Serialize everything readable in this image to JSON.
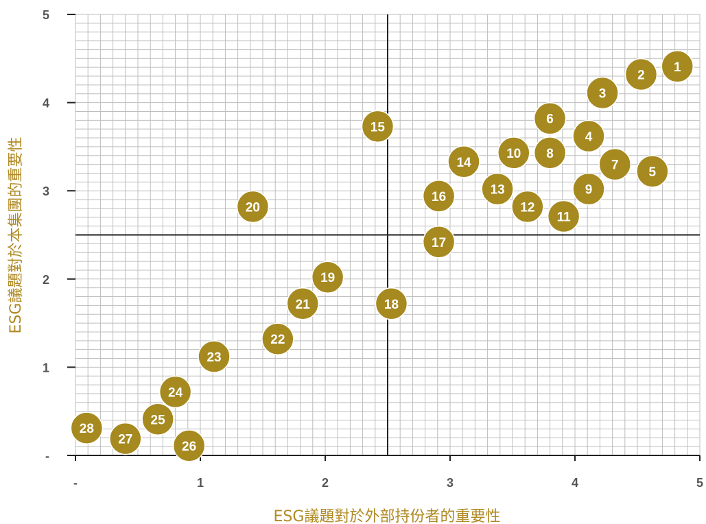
{
  "chart_data": {
    "type": "scatter",
    "xlabel": "ESG議題對於外部持份者的重要性",
    "ylabel": "ESG議題對於本集團的重要性",
    "xlim": [
      0,
      5
    ],
    "ylim": [
      0,
      5
    ],
    "x_ticks": [
      "-",
      "1",
      "2",
      "3",
      "4",
      "5"
    ],
    "y_ticks": [
      "-",
      "1",
      "2",
      "3",
      "4",
      "5"
    ],
    "grid": true,
    "reference_lines": {
      "x": 2.5,
      "y": 2.5
    },
    "colors": {
      "bubble": "#a6891f",
      "bubble_border": "#ffffff",
      "axis_title": "#b08a23",
      "tick": "#555555",
      "grid": "#bdbdbd",
      "axis": "#222222"
    },
    "points": [
      {
        "label": "1",
        "x": 4.82,
        "y": 4.41
      },
      {
        "label": "2",
        "x": 4.53,
        "y": 4.32
      },
      {
        "label": "3",
        "x": 4.22,
        "y": 4.11
      },
      {
        "label": "4",
        "x": 4.11,
        "y": 3.62
      },
      {
        "label": "5",
        "x": 4.62,
        "y": 3.22
      },
      {
        "label": "6",
        "x": 3.8,
        "y": 3.82
      },
      {
        "label": "7",
        "x": 4.32,
        "y": 3.3
      },
      {
        "label": "8",
        "x": 3.8,
        "y": 3.43
      },
      {
        "label": "9",
        "x": 4.11,
        "y": 3.02
      },
      {
        "label": "10",
        "x": 3.51,
        "y": 3.43
      },
      {
        "label": "11",
        "x": 3.91,
        "y": 2.71
      },
      {
        "label": "12",
        "x": 3.62,
        "y": 2.82
      },
      {
        "label": "13",
        "x": 3.38,
        "y": 3.02
      },
      {
        "label": "14",
        "x": 3.11,
        "y": 3.33
      },
      {
        "label": "15",
        "x": 2.42,
        "y": 3.73
      },
      {
        "label": "16",
        "x": 2.91,
        "y": 2.94
      },
      {
        "label": "17",
        "x": 2.91,
        "y": 2.42
      },
      {
        "label": "18",
        "x": 2.53,
        "y": 1.72
      },
      {
        "label": "19",
        "x": 2.02,
        "y": 2.02
      },
      {
        "label": "20",
        "x": 1.42,
        "y": 2.82
      },
      {
        "label": "21",
        "x": 1.82,
        "y": 1.72
      },
      {
        "label": "22",
        "x": 1.62,
        "y": 1.32
      },
      {
        "label": "23",
        "x": 1.11,
        "y": 1.12
      },
      {
        "label": "24",
        "x": 0.8,
        "y": 0.72
      },
      {
        "label": "25",
        "x": 0.66,
        "y": 0.41
      },
      {
        "label": "26",
        "x": 0.91,
        "y": 0.11
      },
      {
        "label": "27",
        "x": 0.4,
        "y": 0.19
      },
      {
        "label": "28",
        "x": 0.09,
        "y": 0.31
      }
    ]
  }
}
